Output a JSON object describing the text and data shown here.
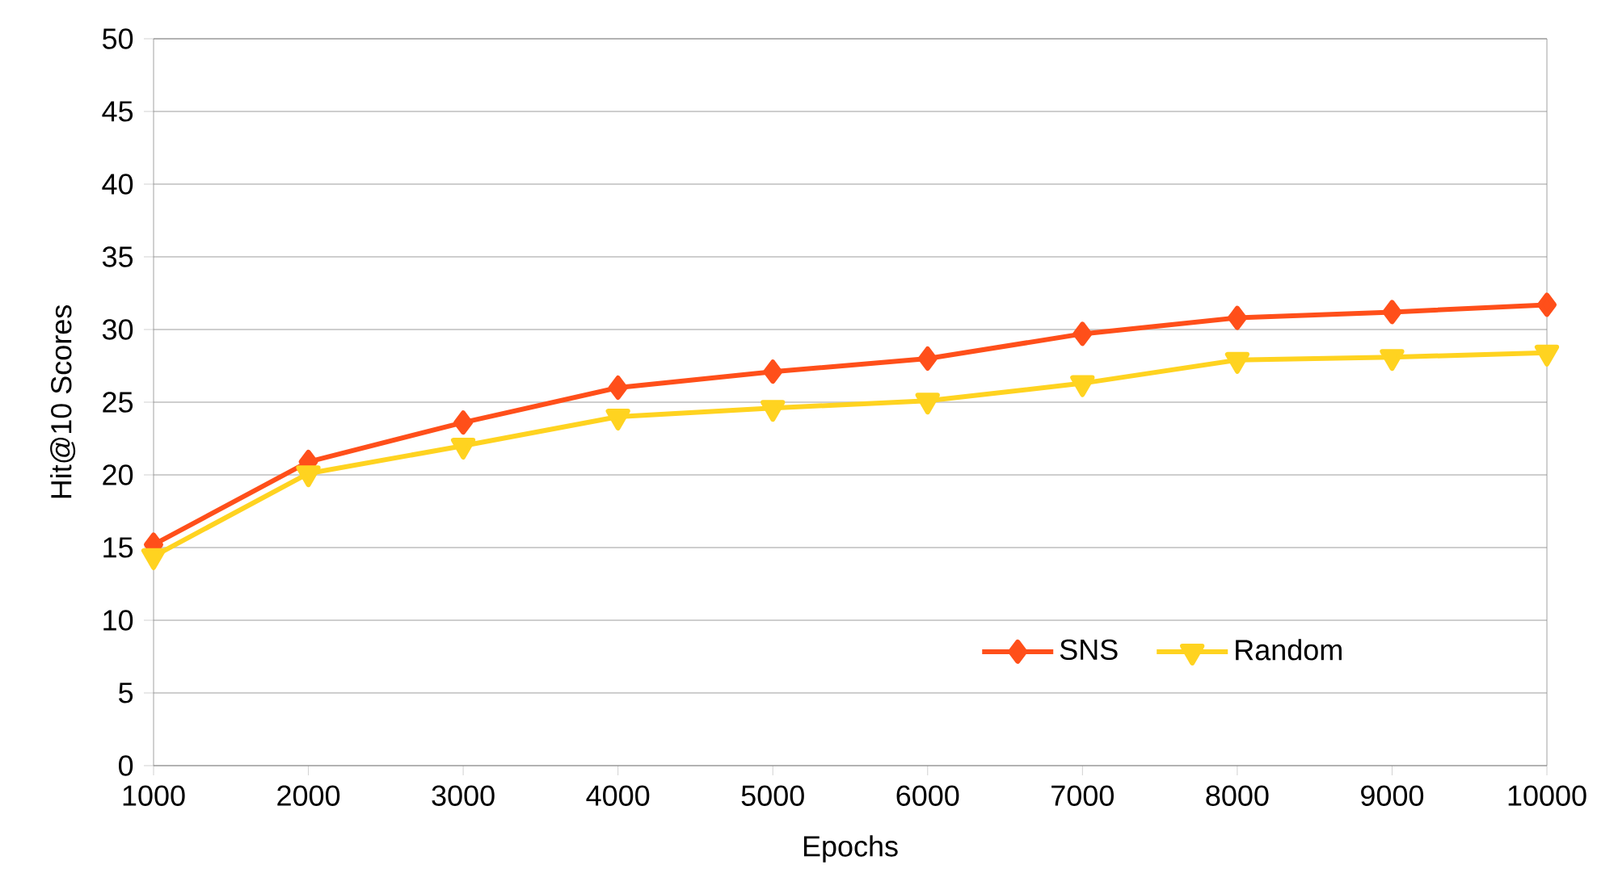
{
  "chart_data": {
    "type": "line",
    "xlabel": "Epochs",
    "ylabel": "Hit@10 Scores",
    "x": [
      1000,
      2000,
      3000,
      4000,
      5000,
      6000,
      7000,
      8000,
      9000,
      10000
    ],
    "series": [
      {
        "name": "SNS",
        "color": "#ff4f1a",
        "marker": "diamond",
        "values": [
          15.2,
          20.9,
          23.6,
          26.0,
          27.1,
          28.0,
          29.7,
          30.8,
          31.2,
          31.7
        ]
      },
      {
        "name": "Random",
        "color": "#ffd320",
        "marker": "triangle",
        "values": [
          14.4,
          20.1,
          22.0,
          24.0,
          24.6,
          25.1,
          26.3,
          27.9,
          28.1,
          28.4
        ]
      }
    ],
    "xlim": [
      1000,
      10000
    ],
    "xticks": [
      1000,
      2000,
      3000,
      4000,
      5000,
      6000,
      7000,
      8000,
      9000,
      10000
    ],
    "ylim": [
      0,
      50
    ],
    "yticks": [
      0,
      5,
      10,
      15,
      20,
      25,
      30,
      35,
      40,
      45,
      50
    ],
    "grid": "y",
    "legend": "bottom right",
    "line_style": "solid"
  }
}
